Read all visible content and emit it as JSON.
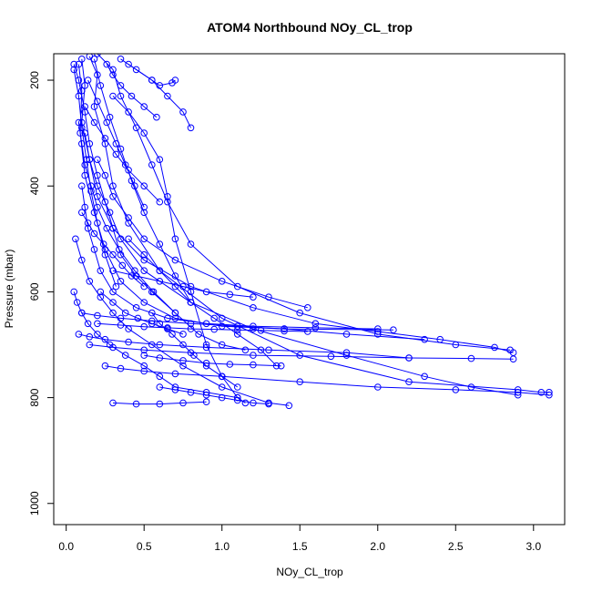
{
  "chart_data": {
    "type": "line",
    "title": "ATOM4 Northbound NOy_CL_trop",
    "xlabel": "NOy_CL_trop",
    "ylabel": "Pressure (mbar)",
    "xlim": [
      -0.08,
      3.2
    ],
    "ylim": [
      1040,
      150
    ],
    "y_reversed": true,
    "xticks": [
      0.0,
      0.5,
      1.0,
      1.5,
      2.0,
      2.5,
      3.0
    ],
    "xtick_labels": [
      "0.0",
      "0.5",
      "1.0",
      "1.5",
      "2.0",
      "2.5",
      "3.0"
    ],
    "yticks": [
      200,
      400,
      600,
      800,
      1000
    ],
    "ytick_labels": [
      "200",
      "400",
      "600",
      "800",
      "1000"
    ],
    "grid": false,
    "marker": "open-circle",
    "series_color": "#0000ff",
    "series": [
      {
        "x": [
          0.05,
          0.08,
          0.12,
          0.15,
          0.2,
          0.25,
          0.3,
          0.35,
          0.45,
          0.55,
          0.7,
          0.85,
          1.0,
          1.15
        ],
        "y": [
          170,
          200,
          260,
          320,
          380,
          430,
          480,
          530,
          570,
          600,
          640,
          680,
          700,
          710
        ]
      },
      {
        "x": [
          0.1,
          0.12,
          0.1,
          0.15,
          0.2,
          0.3,
          0.5,
          0.8,
          1.2,
          1.6,
          2.0,
          2.4,
          2.75,
          2.87
        ],
        "y": [
          160,
          210,
          280,
          350,
          420,
          480,
          540,
          590,
          630,
          660,
          675,
          690,
          705,
          715
        ]
      },
      {
        "x": [
          0.15,
          0.2,
          0.18,
          0.25,
          0.3,
          0.4,
          0.6,
          1.0,
          1.5,
          2.2,
          2.9,
          3.05,
          3.1
        ],
        "y": [
          155,
          190,
          250,
          320,
          400,
          470,
          560,
          650,
          720,
          770,
          785,
          790,
          790
        ]
      },
      {
        "x": [
          0.08,
          0.1,
          0.09,
          0.12,
          0.18,
          0.25,
          0.35,
          0.5,
          0.7,
          1.0,
          1.4,
          2.1
        ],
        "y": [
          170,
          220,
          300,
          380,
          450,
          520,
          580,
          620,
          650,
          665,
          670,
          672
        ]
      },
      {
        "x": [
          0.2,
          0.3,
          0.35,
          0.45,
          0.55,
          0.65,
          0.8,
          1.1,
          1.5,
          2.0,
          2.5,
          2.85
        ],
        "y": [
          150,
          180,
          230,
          290,
          360,
          430,
          510,
          590,
          640,
          680,
          700,
          710
        ]
      },
      {
        "x": [
          0.3,
          0.4,
          0.5,
          0.6,
          0.65,
          0.7,
          0.8,
          0.9,
          1.0,
          1.1,
          1.15
        ],
        "y": [
          230,
          260,
          300,
          350,
          420,
          500,
          600,
          700,
          760,
          800,
          810
        ]
      },
      {
        "x": [
          0.06,
          0.1,
          0.15,
          0.22,
          0.3,
          0.4,
          0.55,
          0.75,
          1.0,
          1.3,
          1.43
        ],
        "y": [
          500,
          540,
          580,
          610,
          640,
          670,
          700,
          740,
          780,
          810,
          815
        ]
      },
      {
        "x": [
          0.12,
          0.15,
          0.2,
          0.28,
          0.35,
          0.5,
          0.8,
          1.2,
          1.8,
          2.3,
          2.6,
          2.9
        ],
        "y": [
          300,
          350,
          400,
          450,
          500,
          560,
          620,
          670,
          720,
          760,
          780,
          795
        ]
      },
      {
        "x": [
          0.4,
          0.55,
          0.65,
          0.75,
          0.8
        ],
        "y": [
          170,
          200,
          230,
          260,
          290
        ]
      },
      {
        "x": [
          0.05,
          0.07,
          0.1,
          0.14,
          0.2,
          0.28,
          0.38,
          0.5,
          0.6,
          0.7,
          0.9,
          1.1
        ],
        "y": [
          600,
          620,
          640,
          660,
          680,
          700,
          720,
          740,
          760,
          780,
          790,
          800
        ]
      },
      {
        "x": [
          0.35,
          0.45,
          0.55,
          0.6,
          0.68,
          0.7
        ],
        "y": [
          160,
          180,
          200,
          210,
          205,
          200
        ]
      },
      {
        "x": [
          0.1,
          0.2,
          0.35,
          0.55,
          0.8,
          1.1,
          1.4,
          1.8,
          2.3
        ],
        "y": [
          640,
          645,
          650,
          655,
          660,
          665,
          670,
          680,
          690
        ]
      },
      {
        "x": [
          0.15,
          0.3,
          0.5,
          0.8,
          1.2,
          1.7,
          2.2,
          2.6,
          2.87
        ],
        "y": [
          700,
          705,
          710,
          715,
          720,
          722,
          725,
          726,
          727
        ]
      },
      {
        "x": [
          0.08,
          0.15,
          0.25,
          0.4,
          0.6,
          0.9,
          1.3,
          1.8,
          2.2
        ],
        "y": [
          680,
          685,
          690,
          695,
          700,
          705,
          710,
          715,
          725
        ]
      },
      {
        "x": [
          0.25,
          0.35,
          0.5,
          0.7,
          1.0,
          1.5,
          2.0,
          2.5,
          2.9,
          3.1
        ],
        "y": [
          740,
          745,
          750,
          755,
          760,
          770,
          780,
          785,
          790,
          795
        ]
      },
      {
        "x": [
          0.1,
          0.12,
          0.14,
          0.18,
          0.22,
          0.3,
          0.45,
          0.65,
          0.9,
          1.2,
          1.6,
          2.0
        ],
        "y": [
          400,
          440,
          480,
          520,
          560,
          600,
          630,
          650,
          660,
          665,
          668,
          670
        ]
      },
      {
        "x": [
          0.2,
          0.25,
          0.3,
          0.4,
          0.5,
          0.7,
          1.0,
          1.3,
          1.55
        ],
        "y": [
          350,
          380,
          420,
          460,
          500,
          540,
          580,
          610,
          630
        ]
      },
      {
        "x": [
          0.05,
          0.08,
          0.1,
          0.13,
          0.16,
          0.2,
          0.25,
          0.32
        ],
        "y": [
          180,
          230,
          290,
          350,
          410,
          470,
          530,
          590
        ]
      },
      {
        "x": [
          0.18,
          0.22,
          0.28,
          0.35,
          0.42,
          0.5,
          0.6,
          0.7,
          0.8
        ],
        "y": [
          160,
          210,
          270,
          330,
          390,
          450,
          510,
          570,
          620
        ]
      },
      {
        "x": [
          0.4,
          0.5,
          0.6,
          0.7,
          0.8,
          0.95,
          1.1,
          1.25,
          1.35
        ],
        "y": [
          500,
          530,
          560,
          590,
          620,
          650,
          680,
          710,
          740
        ]
      },
      {
        "x": [
          0.3,
          0.45,
          0.6,
          0.75,
          0.9,
          1.05,
          1.2
        ],
        "y": [
          560,
          570,
          580,
          590,
          600,
          605,
          610
        ]
      },
      {
        "x": [
          0.12,
          0.18,
          0.25,
          0.32,
          0.4,
          0.5,
          0.6
        ],
        "y": [
          250,
          280,
          310,
          340,
          370,
          400,
          430
        ]
      },
      {
        "x": [
          0.55,
          0.6,
          0.68,
          0.75,
          0.82,
          0.9,
          1.0,
          1.1
        ],
        "y": [
          640,
          660,
          680,
          700,
          720,
          740,
          760,
          780
        ]
      },
      {
        "x": [
          0.22,
          0.3,
          0.38,
          0.46,
          0.55,
          0.65,
          0.75
        ],
        "y": [
          600,
          620,
          640,
          650,
          660,
          670,
          680
        ]
      },
      {
        "x": [
          0.08,
          0.1,
          0.12,
          0.16,
          0.2,
          0.26,
          0.34,
          0.44,
          0.56,
          0.7
        ],
        "y": [
          280,
          320,
          360,
          400,
          440,
          480,
          520,
          560,
          600,
          640
        ]
      },
      {
        "x": [
          0.14,
          0.2,
          0.26,
          0.32,
          0.38,
          0.44,
          0.5
        ],
        "y": [
          200,
          240,
          280,
          320,
          360,
          400,
          440
        ]
      },
      {
        "x": [
          0.6,
          0.7,
          0.8,
          0.9,
          1.0,
          1.1,
          1.2,
          1.3
        ],
        "y": [
          780,
          785,
          790,
          795,
          800,
          805,
          810,
          812
        ]
      },
      {
        "x": [
          0.3,
          0.45,
          0.6,
          0.75,
          0.9
        ],
        "y": [
          810,
          812,
          812,
          810,
          808
        ]
      },
      {
        "x": [
          0.5,
          0.6,
          0.75,
          0.9,
          1.05,
          1.2,
          1.38
        ],
        "y": [
          720,
          725,
          730,
          735,
          737,
          738,
          740
        ]
      },
      {
        "x": [
          0.1,
          0.14,
          0.18,
          0.24,
          0.3,
          0.36,
          0.42,
          0.5
        ],
        "y": [
          450,
          470,
          490,
          510,
          530,
          550,
          570,
          590
        ]
      },
      {
        "x": [
          0.2,
          0.35,
          0.5,
          0.65,
          0.8,
          0.95,
          1.1,
          1.25,
          1.4,
          1.55
        ],
        "y": [
          660,
          663,
          666,
          668,
          670,
          671,
          672,
          673,
          674,
          675
        ]
      },
      {
        "x": [
          0.26,
          0.3,
          0.35,
          0.42,
          0.5,
          0.58
        ],
        "y": [
          170,
          190,
          210,
          230,
          250,
          270
        ]
      }
    ]
  }
}
